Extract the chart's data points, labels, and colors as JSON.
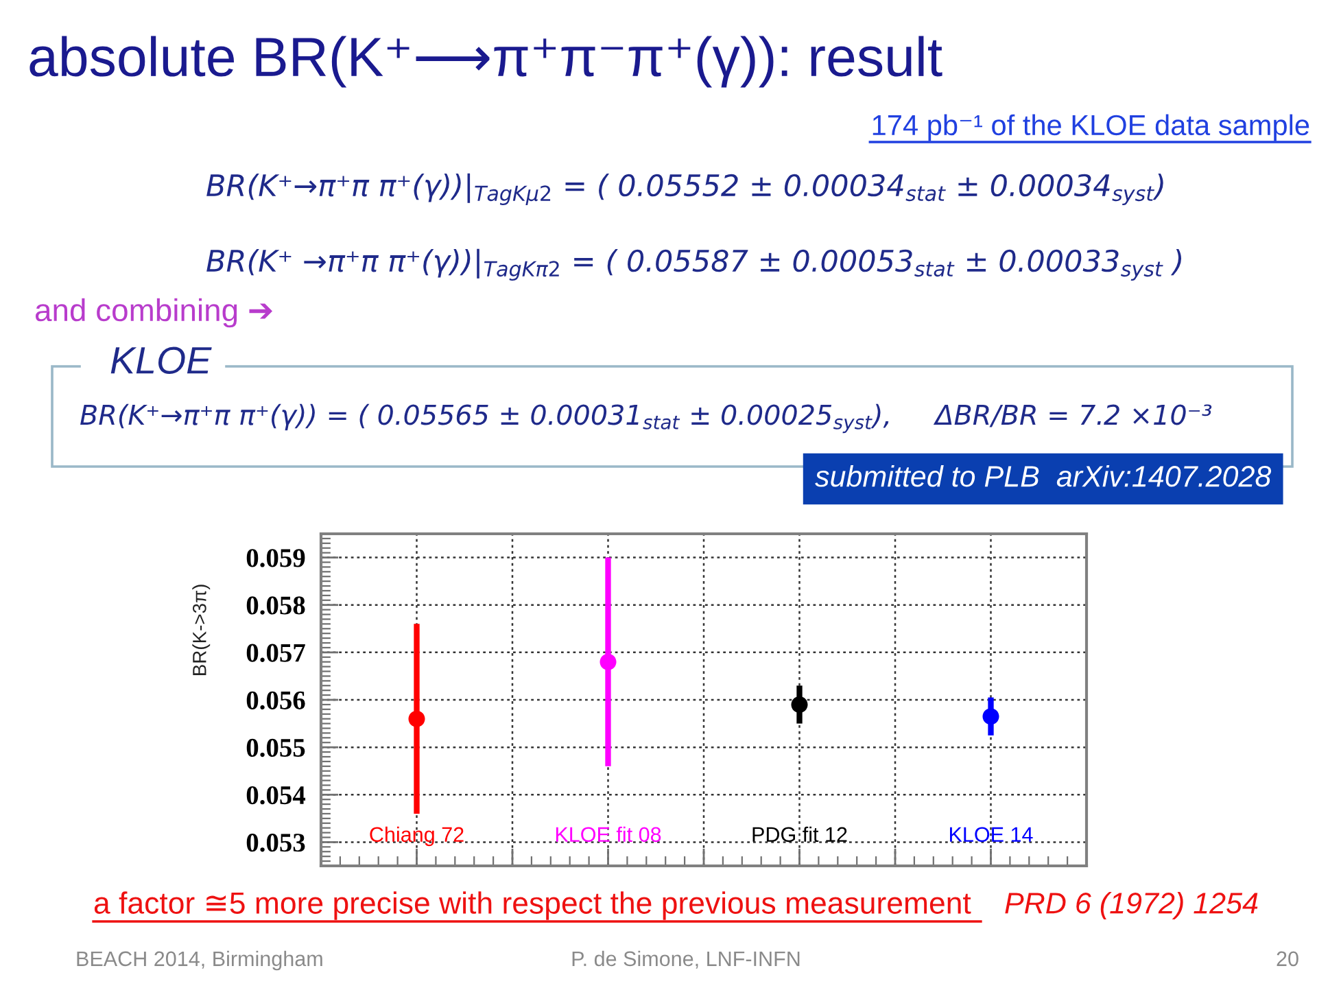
{
  "chart_data": {
    "type": "scatter",
    "title": "absolute BR(K⁺⟶π⁺π⁻π⁺(γ)): result",
    "subtitle": "174 pb⁻¹ of the KLOE data sample",
    "ylabel": "BR(K->3π)",
    "categories": [
      "Chiang 72",
      "KLOE fit 08",
      "PDG fit 12",
      "KLOE 14"
    ],
    "values": [
      0.0556,
      0.0568,
      0.0559,
      0.05565
    ],
    "errors": [
      0.002,
      0.0022,
      0.0004,
      0.0004
    ],
    "colors": [
      "#ff0000",
      "#ff00ff",
      "#000000",
      "#0000ff"
    ],
    "marker": "circle",
    "ylim": [
      0.0525,
      0.0595
    ],
    "yticks": [
      0.053,
      0.054,
      0.055,
      0.056,
      0.057,
      0.058,
      0.059
    ],
    "grid": true,
    "annotations": [
      "BR(K⁺→π⁺π π⁺(γ))|$_{TagKμ2}$ = ( 0.05552 ± 0.00034$_{stat}$ ± 0.00034$_{syst}$)",
      "BR(K⁺ →π⁺π π⁺(γ))|$_{TagKπ2}$ = ( 0.05587 ± 0.00053$_{stat}$ ± 0.00033$_{syst}$ )",
      "and combining ➔",
      "KLOE",
      "BR(K⁺→π⁺π π⁺(γ)) = ( 0.05565 ± 0.00031$_{stat}$ ± 0.00025$_{syst}$),     ΔBR/BR = 7.2 ×10⁻³",
      "submitted to PLB  arXiv:1407.2028",
      "a factor ≅5 more precise with respect the previous measurement ",
      "PRD 6 (1972) 1254",
      "BEACH 2014, Birmingham",
      "P. de Simone, LNF-INFN",
      "20"
    ]
  }
}
